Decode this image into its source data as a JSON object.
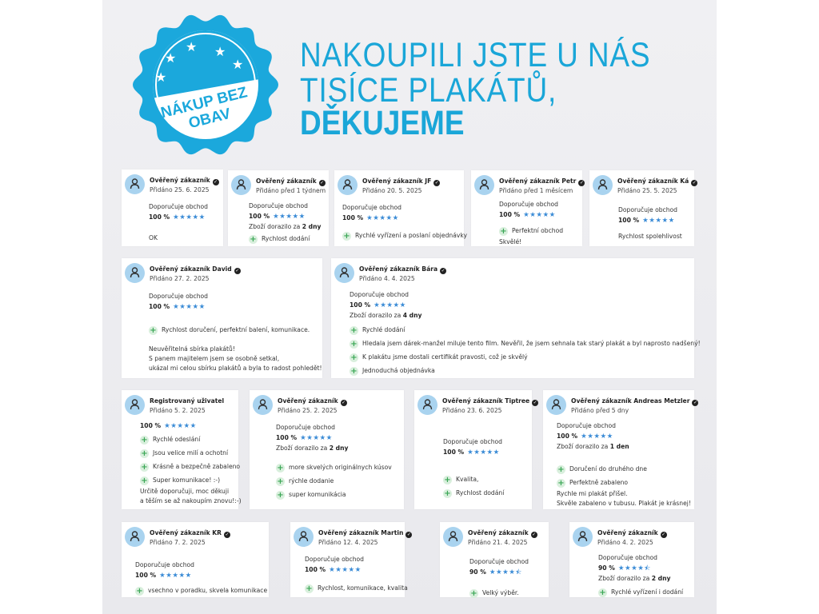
{
  "badge": {
    "line1": "NÁKUP BEZ",
    "line2": "OBAV",
    "color": "#1ba8dc"
  },
  "headline": {
    "line1": "NAKOUPILI JSTE U NÁS",
    "line2": "TISÍCE PLAKÁTŮ,",
    "line3": "DĚKUJEME",
    "color": "#1aa6d8"
  },
  "cards": [
    {
      "name": "Ověřený zákazník",
      "verified": true,
      "date": "Přidáno 25. 6. 2025",
      "recommend": "Doporučuje obchod",
      "percent": "100 %",
      "stars": 5,
      "pros": [],
      "text": [
        "OK"
      ]
    },
    {
      "name": "Ověřený zákazník",
      "verified": true,
      "date": "Přidáno před 1 týdnem",
      "recommend": "Doporučuje obchod",
      "percent": "100 %",
      "stars": 5,
      "delivery_prefix": "Zboží dorazilo za",
      "delivery_value": "2 dny",
      "pros": [
        "Rychlost dodání"
      ],
      "text": []
    },
    {
      "name": "Ověřený zákazník JF",
      "verified": true,
      "date": "Přidáno 20. 5. 2025",
      "recommend": "Doporučuje obchod",
      "percent": "100 %",
      "stars": 5,
      "pros": [
        "Rychlé vyřízení a poslaní objednávky"
      ],
      "text": []
    },
    {
      "name": "Ověřený zákazník Petr",
      "verified": true,
      "date": "Přidáno před 1 měsícem",
      "recommend": "Doporučuje obchod",
      "percent": "100 %",
      "stars": 5,
      "pros": [
        "Perfektní obchod"
      ],
      "text": [
        "Skvělé!"
      ]
    },
    {
      "name": "Ověřený zákazník Ká",
      "verified": true,
      "date": "Přidáno 25. 5. 2025",
      "recommend": "Doporučuje obchod",
      "percent": "100 %",
      "stars": 5,
      "pros": [],
      "text": [
        "Rychlost spolehlivost"
      ]
    },
    {
      "name": "Ověřený zákazník David",
      "verified": true,
      "date": "Přidáno 27. 2. 2025",
      "recommend": "Doporučuje obchod",
      "percent": "100 %",
      "stars": 5,
      "pros": [
        "Rychlost doručení, perfektní balení, komunikace."
      ],
      "text": [
        "Neuvěřitelná sbírka plakátů!",
        "S panem majitelem jsem se osobně setkal,",
        "ukázal mi celou sbírku plakátů a byla to radost pohledět!"
      ]
    },
    {
      "name": "Ověřený zákazník Bára",
      "verified": true,
      "date": "Přidáno 4. 4. 2025",
      "recommend": "Doporučuje obchod",
      "percent": "100 %",
      "stars": 5,
      "delivery_prefix": "Zboží dorazilo za",
      "delivery_value": "4 dny",
      "pros": [
        "Rychlé dodání",
        "Hledala jsem dárek-manžel miluje tento film. Nevěřil, že jsem sehnala tak starý plakát a byl naprosto nadšený!",
        "K plakátu jsme dostali certifikát pravosti, což je skvělý",
        "Jednoduchá objednávka"
      ],
      "text": []
    },
    {
      "name": "Registrovaný uživatel",
      "verified": false,
      "date": "Přidáno 5. 2. 2025",
      "percent": "100 %",
      "stars": 5,
      "pros": [
        "Rychlé odeslání",
        "Jsou velice milí a ochotní",
        "Krásně a bezpečně zabaleno",
        "Super komunikace! :-)"
      ],
      "text": [
        "Určitě doporučuji, moc děkuji",
        "a těším se až nakoupím znovu!:-)"
      ]
    },
    {
      "name": "Ověřený zákazník",
      "verified": true,
      "date": "Přidáno 25. 2. 2025",
      "recommend": "Doporučuje obchod",
      "percent": "100 %",
      "stars": 5,
      "delivery_prefix": "Zboží dorazilo za",
      "delivery_value": "2 dny",
      "pros": [
        "more skvelých originálnych kúsov",
        "rýchle dodanie",
        "super komunikácia"
      ],
      "text": []
    },
    {
      "name": "Ověřený zákazník Tiptree",
      "verified": true,
      "date": "Přidáno 23. 6. 2025",
      "recommend": "Doporučuje obchod",
      "percent": "100 %",
      "stars": 5,
      "pros": [
        "Kvalita,",
        "Rychlost dodání"
      ],
      "text": []
    },
    {
      "name": "Ověřený zákazník Andreas Metzler",
      "verified": true,
      "date": "Přidáno před 5 dny",
      "recommend": "Doporučuje obchod",
      "percent": "100 %",
      "stars": 5,
      "delivery_prefix": "Zboží dorazilo za",
      "delivery_value": "1 den",
      "pros": [
        "Doručení do druhého dne",
        "Perfektně zabaleno"
      ],
      "text": [
        "Rychle mi plakát přišel.",
        "Skvěle zabaleno v tubusu. Plakát je krásnej!"
      ]
    },
    {
      "name": "Ověřený zákazník KR",
      "verified": true,
      "date": "Přidáno 7. 2. 2025",
      "recommend": "Doporučuje obchod",
      "percent": "100 %",
      "stars": 5,
      "pros": [
        "vsechno v poradku, skvela komunikace"
      ],
      "text": []
    },
    {
      "name": "Ověřený zákazník Martin",
      "verified": true,
      "date": "Přidáno 12. 4. 2025",
      "recommend": "Doporučuje obchod",
      "percent": "100 %",
      "stars": 5,
      "pros": [
        "Rychlost, komunikace, kvalita"
      ],
      "text": []
    },
    {
      "name": "Ověřený zákazník",
      "verified": true,
      "date": "Přidáno 21. 4. 2025",
      "recommend": "Doporučuje obchod",
      "percent": "90 %",
      "stars": 4.5,
      "pros": [
        "Velký výběr."
      ],
      "text": []
    },
    {
      "name": "Ověřený zákazník",
      "verified": true,
      "date": "Přidáno 4. 2. 2025",
      "recommend": "Doporučuje obchod",
      "percent": "90 %",
      "stars": 4.5,
      "delivery_prefix": "Zboží dorazilo za",
      "delivery_value": "2 dny",
      "pros": [
        "Rychlé vyřízení i dodání"
      ],
      "text": []
    }
  ],
  "colors": {
    "star": "#3a8bd6",
    "plus": "#3aa655",
    "avatar": "#a9d3ef"
  }
}
